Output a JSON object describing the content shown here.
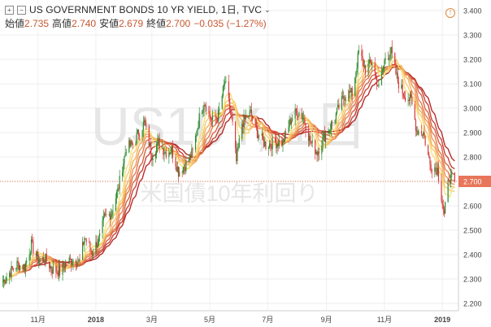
{
  "header": {
    "title": "US GOVERNMENT BONDS 10 YR YIELD, 1日, TVC",
    "open_label": "始値",
    "open_value": "2.735",
    "high_label": "高値",
    "high_value": "2.740",
    "low_label": "安値",
    "low_value": "2.679",
    "close_label": "終値",
    "close_value": "2.700",
    "change": "−0.035 (−1.27%)",
    "alert_icon": "exclamation-circle-icon",
    "expand_icon": "plus-square-icon",
    "settings_icon": "minus-square-icon"
  },
  "watermark": {
    "symbol": "US10Y, 1日",
    "description": "米国債10年利回り"
  },
  "colors": {
    "up": "#2c8a2c",
    "down": "#d53a3a",
    "last_price": "#e8765a",
    "ribbon_fast": "#f7e07a",
    "ribbon_slow": "#b3201e",
    "grid": "#eeeeee"
  },
  "chart_data": {
    "type": "candlestick",
    "series_ribbon": "moving-average ribbon (8 lines, yellow to dark red)",
    "y_axis": {
      "ticks": [
        "3.400",
        "3.300",
        "3.200",
        "3.100",
        "3.000",
        "2.900",
        "2.800",
        "2.700",
        "2.600",
        "2.500",
        "2.400",
        "2.300",
        "2.200"
      ],
      "range": [
        2.17,
        3.43
      ]
    },
    "x_axis": {
      "ticks": [
        "11月",
        "2018",
        "3月",
        "5月",
        "7月",
        "9月",
        "11月",
        "2019"
      ]
    },
    "last_price": 2.7,
    "last_price_label": "2.700",
    "close_path": [
      {
        "d": "2017-09-25",
        "v": 2.29
      },
      {
        "d": "2017-10-03",
        "v": 2.33
      },
      {
        "d": "2017-10-10",
        "v": 2.36
      },
      {
        "d": "2017-10-18",
        "v": 2.35
      },
      {
        "d": "2017-10-25",
        "v": 2.44
      },
      {
        "d": "2017-11-01",
        "v": 2.38
      },
      {
        "d": "2017-11-09",
        "v": 2.38
      },
      {
        "d": "2017-11-16",
        "v": 2.34
      },
      {
        "d": "2017-11-24",
        "v": 2.33
      },
      {
        "d": "2017-12-01",
        "v": 2.37
      },
      {
        "d": "2017-12-08",
        "v": 2.38
      },
      {
        "d": "2017-12-15",
        "v": 2.37
      },
      {
        "d": "2017-12-20",
        "v": 2.47
      },
      {
        "d": "2017-12-28",
        "v": 2.41
      },
      {
        "d": "2018-01-05",
        "v": 2.47
      },
      {
        "d": "2018-01-10",
        "v": 2.55
      },
      {
        "d": "2018-01-17",
        "v": 2.57
      },
      {
        "d": "2018-01-24",
        "v": 2.66
      },
      {
        "d": "2018-02-02",
        "v": 2.84
      },
      {
        "d": "2018-02-09",
        "v": 2.85
      },
      {
        "d": "2018-02-15",
        "v": 2.9
      },
      {
        "d": "2018-02-21",
        "v": 2.94
      },
      {
        "d": "2018-03-01",
        "v": 2.81
      },
      {
        "d": "2018-03-08",
        "v": 2.86
      },
      {
        "d": "2018-03-15",
        "v": 2.82
      },
      {
        "d": "2018-03-22",
        "v": 2.83
      },
      {
        "d": "2018-03-29",
        "v": 2.74
      },
      {
        "d": "2018-04-06",
        "v": 2.77
      },
      {
        "d": "2018-04-13",
        "v": 2.82
      },
      {
        "d": "2018-04-20",
        "v": 2.96
      },
      {
        "d": "2018-04-25",
        "v": 3.03
      },
      {
        "d": "2018-05-03",
        "v": 2.95
      },
      {
        "d": "2018-05-10",
        "v": 2.97
      },
      {
        "d": "2018-05-17",
        "v": 3.11
      },
      {
        "d": "2018-05-25",
        "v": 2.93
      },
      {
        "d": "2018-05-29",
        "v": 2.78
      },
      {
        "d": "2018-06-04",
        "v": 2.94
      },
      {
        "d": "2018-06-13",
        "v": 2.98
      },
      {
        "d": "2018-06-20",
        "v": 2.9
      },
      {
        "d": "2018-06-29",
        "v": 2.85
      },
      {
        "d": "2018-07-09",
        "v": 2.86
      },
      {
        "d": "2018-07-17",
        "v": 2.86
      },
      {
        "d": "2018-07-25",
        "v": 2.95
      },
      {
        "d": "2018-08-01",
        "v": 2.99
      },
      {
        "d": "2018-08-08",
        "v": 2.96
      },
      {
        "d": "2018-08-15",
        "v": 2.86
      },
      {
        "d": "2018-08-22",
        "v": 2.82
      },
      {
        "d": "2018-08-29",
        "v": 2.88
      },
      {
        "d": "2018-09-07",
        "v": 2.94
      },
      {
        "d": "2018-09-14",
        "v": 3.0
      },
      {
        "d": "2018-09-21",
        "v": 3.06
      },
      {
        "d": "2018-09-28",
        "v": 3.06
      },
      {
        "d": "2018-10-05",
        "v": 3.23
      },
      {
        "d": "2018-10-12",
        "v": 3.16
      },
      {
        "d": "2018-10-19",
        "v": 3.19
      },
      {
        "d": "2018-10-26",
        "v": 3.08
      },
      {
        "d": "2018-11-02",
        "v": 3.21
      },
      {
        "d": "2018-11-08",
        "v": 3.23
      },
      {
        "d": "2018-11-15",
        "v": 3.11
      },
      {
        "d": "2018-11-21",
        "v": 3.06
      },
      {
        "d": "2018-11-29",
        "v": 3.03
      },
      {
        "d": "2018-12-05",
        "v": 2.91
      },
      {
        "d": "2018-12-12",
        "v": 2.9
      },
      {
        "d": "2018-12-19",
        "v": 2.77
      },
      {
        "d": "2018-12-27",
        "v": 2.75
      },
      {
        "d": "2019-01-03",
        "v": 2.56
      },
      {
        "d": "2019-01-08",
        "v": 2.72
      },
      {
        "d": "2019-01-14",
        "v": 2.7
      }
    ]
  }
}
